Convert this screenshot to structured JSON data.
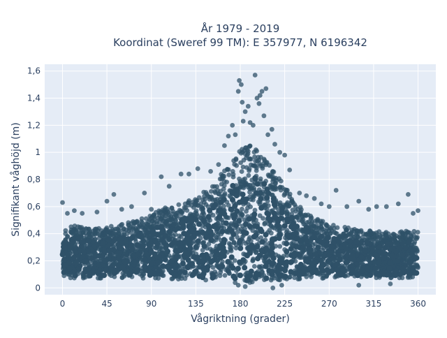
{
  "chart_data": {
    "type": "scatter",
    "title_lines": [
      "År 1979 - 2019",
      "Koordinat (Sweref 99 TM): E 357977, N 6196342"
    ],
    "xlabel": "Vågriktning (grader)",
    "ylabel": "Signifikant våghöjd (m)",
    "xlim": [
      -18,
      378
    ],
    "ylim": [
      -0.05,
      1.65
    ],
    "xticks": [
      0,
      45,
      90,
      135,
      180,
      225,
      270,
      315,
      360
    ],
    "xtick_labels": [
      "0",
      "45",
      "90",
      "135",
      "180",
      "225",
      "270",
      "315",
      "360"
    ],
    "yticks": [
      0,
      0.2,
      0.4,
      0.6,
      0.8,
      1.0,
      1.2,
      1.4,
      1.6
    ],
    "ytick_labels": [
      "0",
      "0,2",
      "0,4",
      "0,6",
      "0,8",
      "1",
      "1,2",
      "1,4",
      "1,6"
    ],
    "grid": true,
    "legend": false,
    "marker_color": "#2f5168",
    "plot_bg": "#e5ecf6",
    "envelope_direction_deg": [
      0,
      10,
      20,
      30,
      45,
      60,
      75,
      90,
      105,
      120,
      135,
      150,
      160,
      170,
      180,
      190,
      200,
      210,
      225,
      240,
      255,
      270,
      285,
      300,
      315,
      330,
      345,
      360
    ],
    "envelope_upper_height_m": [
      0.43,
      0.46,
      0.45,
      0.44,
      0.45,
      0.47,
      0.5,
      0.54,
      0.6,
      0.63,
      0.67,
      0.74,
      0.83,
      0.95,
      1.02,
      1.05,
      1.0,
      0.92,
      0.75,
      0.6,
      0.52,
      0.47,
      0.45,
      0.43,
      0.42,
      0.41,
      0.42,
      0.43
    ],
    "envelope_lower_height_m": [
      0.08,
      0.07,
      0.07,
      0.07,
      0.07,
      0.07,
      0.07,
      0.07,
      0.06,
      0.06,
      0.06,
      0.05,
      0.05,
      0.04,
      0.03,
      0.03,
      0.04,
      0.05,
      0.06,
      0.06,
      0.07,
      0.07,
      0.07,
      0.07,
      0.07,
      0.07,
      0.07,
      0.08
    ],
    "outliers": [
      {
        "x": 0,
        "y": 0.63
      },
      {
        "x": 5,
        "y": 0.55
      },
      {
        "x": 12,
        "y": 0.57
      },
      {
        "x": 20,
        "y": 0.55
      },
      {
        "x": 35,
        "y": 0.56
      },
      {
        "x": 45,
        "y": 0.64
      },
      {
        "x": 52,
        "y": 0.69
      },
      {
        "x": 60,
        "y": 0.58
      },
      {
        "x": 70,
        "y": 0.6
      },
      {
        "x": 83,
        "y": 0.7
      },
      {
        "x": 90,
        "y": 0.58
      },
      {
        "x": 100,
        "y": 0.82
      },
      {
        "x": 108,
        "y": 0.75
      },
      {
        "x": 120,
        "y": 0.84
      },
      {
        "x": 128,
        "y": 0.84
      },
      {
        "x": 137,
        "y": 0.88
      },
      {
        "x": 150,
        "y": 0.86
      },
      {
        "x": 158,
        "y": 0.91
      },
      {
        "x": 164,
        "y": 1.05
      },
      {
        "x": 168,
        "y": 1.12
      },
      {
        "x": 172,
        "y": 1.2
      },
      {
        "x": 175,
        "y": 1.13
      },
      {
        "x": 178,
        "y": 1.45
      },
      {
        "x": 179,
        "y": 1.53
      },
      {
        "x": 181,
        "y": 1.5
      },
      {
        "x": 182,
        "y": 1.37
      },
      {
        "x": 183,
        "y": 1.23
      },
      {
        "x": 185,
        "y": 1.3
      },
      {
        "x": 188,
        "y": 1.34
      },
      {
        "x": 190,
        "y": 1.22
      },
      {
        "x": 193,
        "y": 1.2
      },
      {
        "x": 195,
        "y": 1.57
      },
      {
        "x": 197,
        "y": 1.4
      },
      {
        "x": 199,
        "y": 1.36
      },
      {
        "x": 200,
        "y": 1.42
      },
      {
        "x": 202,
        "y": 1.45
      },
      {
        "x": 204,
        "y": 1.27
      },
      {
        "x": 206,
        "y": 1.47
      },
      {
        "x": 208,
        "y": 1.13
      },
      {
        "x": 212,
        "y": 1.17
      },
      {
        "x": 215,
        "y": 1.06
      },
      {
        "x": 220,
        "y": 1.0
      },
      {
        "x": 225,
        "y": 0.98
      },
      {
        "x": 230,
        "y": 0.87
      },
      {
        "x": 240,
        "y": 0.7
      },
      {
        "x": 247,
        "y": 0.68
      },
      {
        "x": 255,
        "y": 0.66
      },
      {
        "x": 262,
        "y": 0.62
      },
      {
        "x": 270,
        "y": 0.6
      },
      {
        "x": 277,
        "y": 0.72
      },
      {
        "x": 288,
        "y": 0.6
      },
      {
        "x": 300,
        "y": 0.64
      },
      {
        "x": 310,
        "y": 0.58
      },
      {
        "x": 318,
        "y": 0.6
      },
      {
        "x": 328,
        "y": 0.6
      },
      {
        "x": 340,
        "y": 0.62
      },
      {
        "x": 350,
        "y": 0.69
      },
      {
        "x": 355,
        "y": 0.55
      },
      {
        "x": 360,
        "y": 0.57
      },
      {
        "x": 213,
        "y": 0.0
      },
      {
        "x": 222,
        "y": 0.02
      },
      {
        "x": 300,
        "y": 0.02
      },
      {
        "x": 332,
        "y": 0.03
      },
      {
        "x": 178,
        "y": 0.02
      },
      {
        "x": 185,
        "y": 0.01
      }
    ]
  }
}
